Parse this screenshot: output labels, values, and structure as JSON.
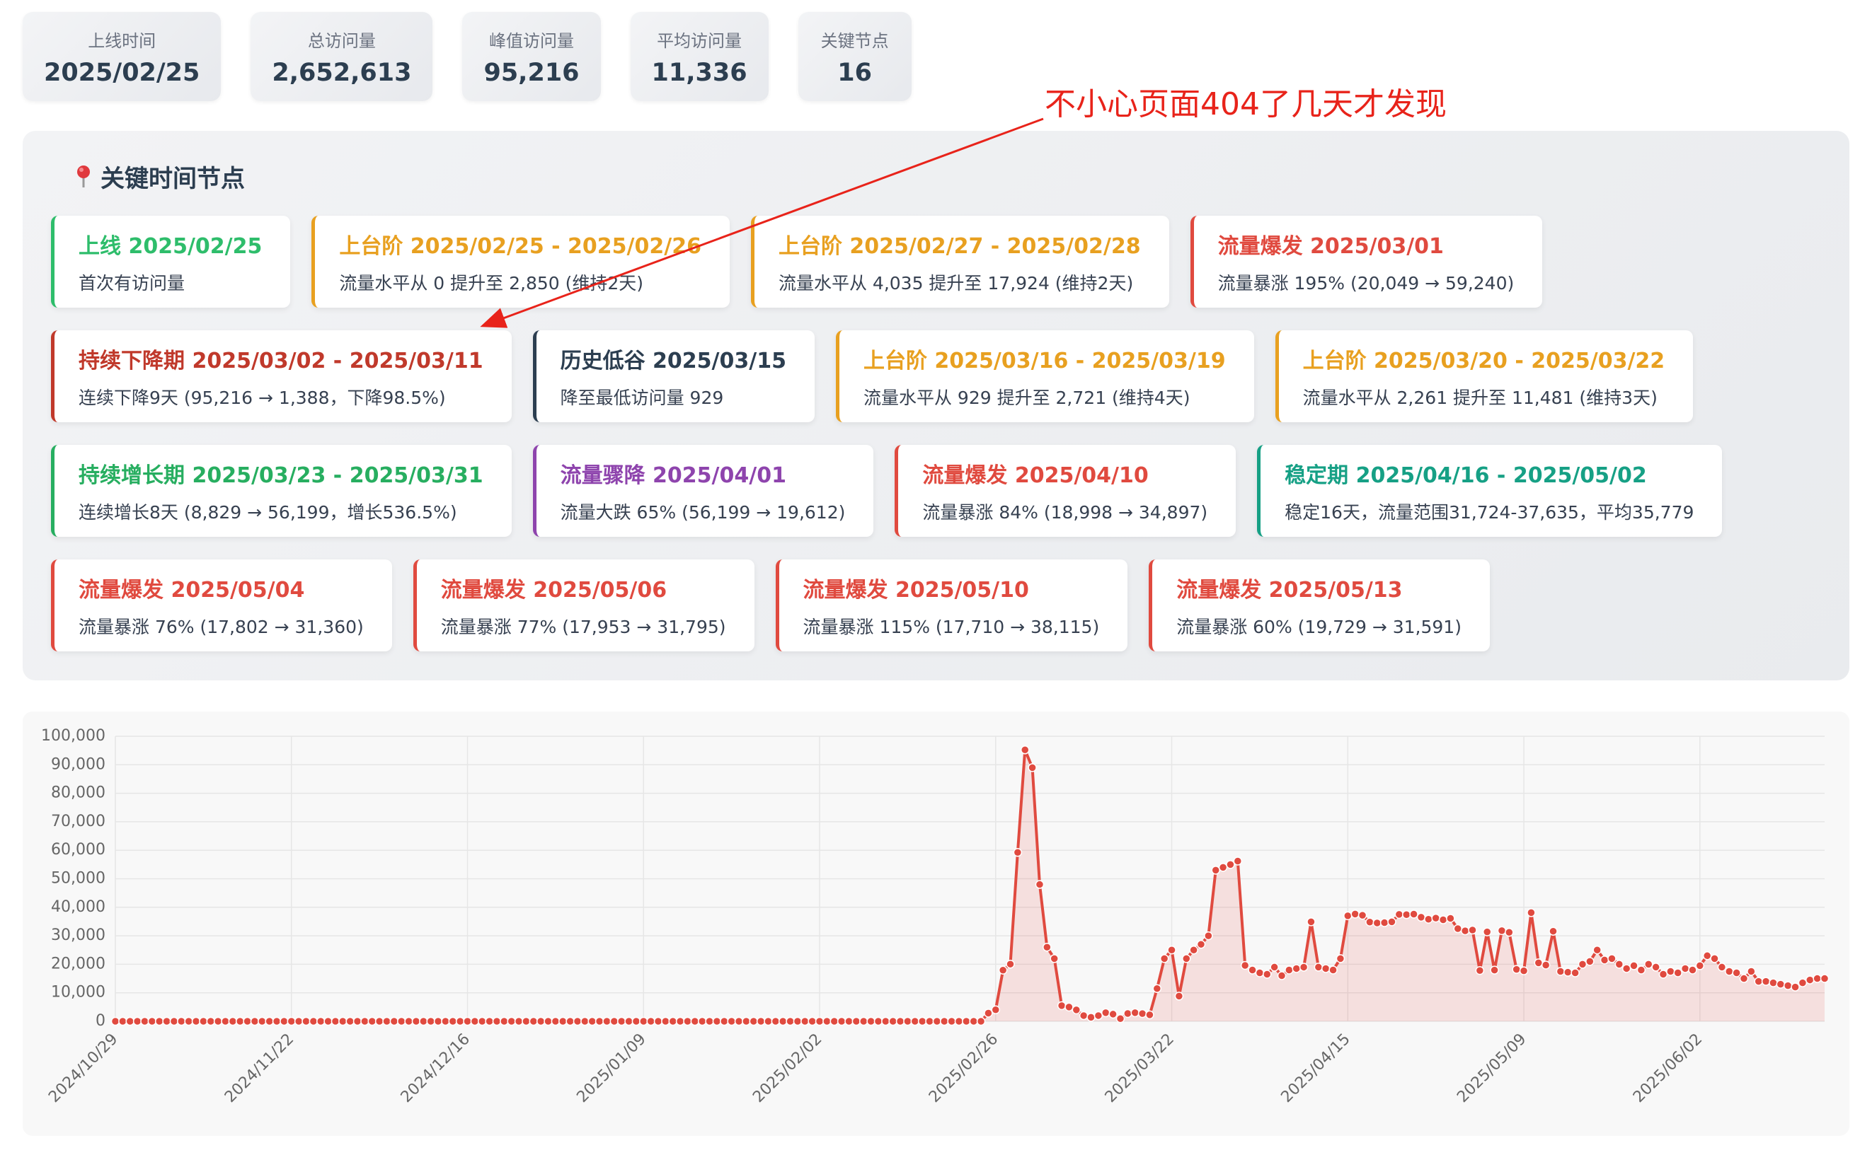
{
  "stats": [
    {
      "label": "上线时间",
      "value": "2025/02/25"
    },
    {
      "label": "总访问量",
      "value": "2,652,613"
    },
    {
      "label": "峰值访问量",
      "value": "95,216"
    },
    {
      "label": "平均访问量",
      "value": "11,336"
    },
    {
      "label": "关键节点",
      "value": "16"
    }
  ],
  "annotation": "不小心页面404了几天才发现",
  "events_panel": {
    "title": "关键时间节点",
    "rows": [
      [
        {
          "title": "上线 2025/02/25",
          "desc": "首次有访问量",
          "color": "#2ebd6b"
        },
        {
          "title": "上台阶 2025/02/25 - 2025/02/26",
          "desc": "流量水平从 0 提升至 2,850 (维持2天)",
          "color": "#e8a020"
        },
        {
          "title": "上台阶 2025/02/27 - 2025/02/28",
          "desc": "流量水平从 4,035 提升至 17,924 (维持2天)",
          "color": "#e8a020"
        },
        {
          "title": "流量爆发 2025/03/01",
          "desc": "流量暴涨 195% (20,049 → 59,240)",
          "color": "#e04a3f"
        }
      ],
      [
        {
          "title": "持续下降期 2025/03/02 - 2025/03/11",
          "desc": "连续下降9天 (95,216 → 1,388，下降98.5%)",
          "color": "#c0392b"
        },
        {
          "title": "历史低谷 2025/03/15",
          "desc": "降至最低访问量 929",
          "color": "#2c3e50"
        },
        {
          "title": "上台阶 2025/03/16 - 2025/03/19",
          "desc": "流量水平从 929 提升至 2,721 (维持4天)",
          "color": "#e8a020"
        },
        {
          "title": "上台阶 2025/03/20 - 2025/03/22",
          "desc": "流量水平从 2,261 提升至 11,481 (维持3天)",
          "color": "#e8a020"
        }
      ],
      [
        {
          "title": "持续增长期 2025/03/23 - 2025/03/31",
          "desc": "连续增长8天 (8,829 → 56,199，增长536.5%)",
          "color": "#27ae60"
        },
        {
          "title": "流量骤降 2025/04/01",
          "desc": "流量大跌 65% (56,199 → 19,612)",
          "color": "#8e44ad"
        },
        {
          "title": "流量爆发 2025/04/10",
          "desc": "流量暴涨 84% (18,998 → 34,897)",
          "color": "#e04a3f"
        },
        {
          "title": "稳定期 2025/04/16 - 2025/05/02",
          "desc": "稳定16天，流量范围31,724-37,635，平均35,779",
          "color": "#16a085"
        }
      ],
      [
        {
          "title": "流量爆发 2025/05/04",
          "desc": "流量暴涨 76% (17,802 → 31,360)",
          "color": "#e04a3f"
        },
        {
          "title": "流量爆发 2025/05/06",
          "desc": "流量暴涨 77% (17,953 → 31,795)",
          "color": "#e04a3f"
        },
        {
          "title": "流量爆发 2025/05/10",
          "desc": "流量暴涨 115% (17,710 → 38,115)",
          "color": "#e04a3f"
        },
        {
          "title": "流量爆发 2025/05/13",
          "desc": "流量暴涨 60% (19,729 → 31,591)",
          "color": "#e04a3f"
        }
      ]
    ]
  },
  "chart_data": {
    "type": "line",
    "color": "#e04a3f",
    "grid": true,
    "area": true,
    "ylim": [
      0,
      100000
    ],
    "yticks": [
      0,
      {
        "value": 10000,
        "label": "10,000"
      },
      {
        "value": 20000,
        "label": "20,000"
      },
      {
        "value": 30000,
        "label": "30,000"
      },
      {
        "value": 40000,
        "label": "40,000"
      },
      {
        "value": 50000,
        "label": "50,000"
      },
      {
        "value": 60000,
        "label": "60,000"
      },
      {
        "value": 70000,
        "label": "70,000"
      },
      {
        "value": 80000,
        "label": "80,000"
      },
      {
        "value": 90000,
        "label": "90,000"
      },
      {
        "value": 100000,
        "label": "100,000"
      }
    ],
    "categories": [
      "2024/10/29",
      null,
      null,
      null,
      null,
      null,
      null,
      null,
      null,
      null,
      null,
      null,
      null,
      null,
      null,
      null,
      null,
      null,
      null,
      null,
      null,
      null,
      null,
      null,
      "2024/11/22",
      null,
      null,
      null,
      null,
      null,
      null,
      null,
      null,
      null,
      null,
      null,
      null,
      null,
      null,
      null,
      null,
      null,
      null,
      null,
      null,
      null,
      null,
      null,
      "2024/12/16",
      null,
      null,
      null,
      null,
      null,
      null,
      null,
      null,
      null,
      null,
      null,
      null,
      null,
      null,
      null,
      null,
      null,
      null,
      null,
      null,
      null,
      null,
      null,
      "2025/01/09",
      null,
      null,
      null,
      null,
      null,
      null,
      null,
      null,
      null,
      null,
      null,
      null,
      null,
      null,
      null,
      null,
      null,
      null,
      null,
      null,
      null,
      null,
      null,
      "2025/02/02",
      null,
      null,
      null,
      null,
      null,
      null,
      null,
      null,
      null,
      null,
      null,
      null,
      null,
      null,
      null,
      null,
      null,
      null,
      null,
      null,
      null,
      null,
      null,
      "2025/02/26",
      null,
      null,
      null,
      null,
      null,
      null,
      null,
      null,
      null,
      null,
      null,
      null,
      null,
      null,
      null,
      null,
      null,
      null,
      null,
      null,
      null,
      null,
      null,
      "2025/03/22",
      null,
      null,
      null,
      null,
      null,
      null,
      null,
      null,
      null,
      null,
      null,
      null,
      null,
      null,
      null,
      null,
      null,
      null,
      null,
      null,
      null,
      null,
      null,
      "2025/04/15",
      null,
      null,
      null,
      null,
      null,
      null,
      null,
      null,
      null,
      null,
      null,
      null,
      null,
      null,
      null,
      null,
      null,
      null,
      null,
      null,
      null,
      null,
      null,
      "2025/05/09",
      null,
      null,
      null,
      null,
      null,
      null,
      null,
      null,
      null,
      null,
      null,
      null,
      null,
      null,
      null,
      null,
      null,
      null,
      null,
      null,
      null,
      null,
      null,
      "2025/06/02",
      null,
      null,
      null,
      null,
      null,
      null,
      null,
      null,
      null,
      null,
      null,
      null,
      null,
      null,
      null,
      null,
      null
    ],
    "values": [
      0,
      0,
      0,
      0,
      0,
      0,
      0,
      0,
      0,
      0,
      0,
      0,
      0,
      0,
      0,
      0,
      0,
      0,
      0,
      0,
      0,
      0,
      0,
      0,
      0,
      0,
      0,
      0,
      0,
      0,
      0,
      0,
      0,
      0,
      0,
      0,
      0,
      0,
      0,
      0,
      0,
      0,
      0,
      0,
      0,
      0,
      0,
      0,
      0,
      0,
      0,
      0,
      0,
      0,
      0,
      0,
      0,
      0,
      0,
      0,
      0,
      0,
      0,
      0,
      0,
      0,
      0,
      0,
      0,
      0,
      0,
      0,
      0,
      0,
      0,
      0,
      0,
      0,
      0,
      0,
      0,
      0,
      0,
      0,
      0,
      0,
      0,
      0,
      0,
      0,
      0,
      0,
      0,
      0,
      0,
      0,
      0,
      0,
      0,
      0,
      0,
      0,
      0,
      0,
      0,
      0,
      0,
      0,
      0,
      0,
      0,
      0,
      0,
      0,
      0,
      0,
      0,
      0,
      0,
      2850,
      4035,
      17924,
      20049,
      59240,
      95216,
      89000,
      48000,
      26000,
      22000,
      5500,
      5000,
      4000,
      2000,
      1388,
      2000,
      3000,
      2500,
      929,
      2721,
      3000,
      2700,
      2261,
      11481,
      22000,
      25000,
      8829,
      22000,
      25000,
      27000,
      30000,
      53000,
      54000,
      55000,
      56199,
      19612,
      18000,
      17000,
      16500,
      19000,
      16000,
      18000,
      18500,
      18998,
      34897,
      19000,
      18500,
      18000,
      22000,
      37000,
      37635,
      37200,
      34800,
      34500,
      34600,
      34900,
      37500,
      37400,
      37600,
      36500,
      35800,
      36200,
      35600,
      36100,
      32500,
      31724,
      32000,
      17802,
      31360,
      17953,
      31795,
      31200,
      18200,
      17710,
      38115,
      20500,
      19729,
      31591,
      17500,
      17200,
      17000,
      20000,
      21000,
      25000,
      21500,
      22000,
      20000,
      18500,
      19500,
      18000,
      20000,
      19000,
      16500,
      17500,
      17000,
      18500,
      18000,
      19500,
      23000,
      22000,
      19000,
      17500,
      17000,
      15000,
      17500,
      14000,
      14000,
      13500,
      13000,
      12500,
      12000,
      13500,
      14500,
      15000,
      15000
    ]
  }
}
